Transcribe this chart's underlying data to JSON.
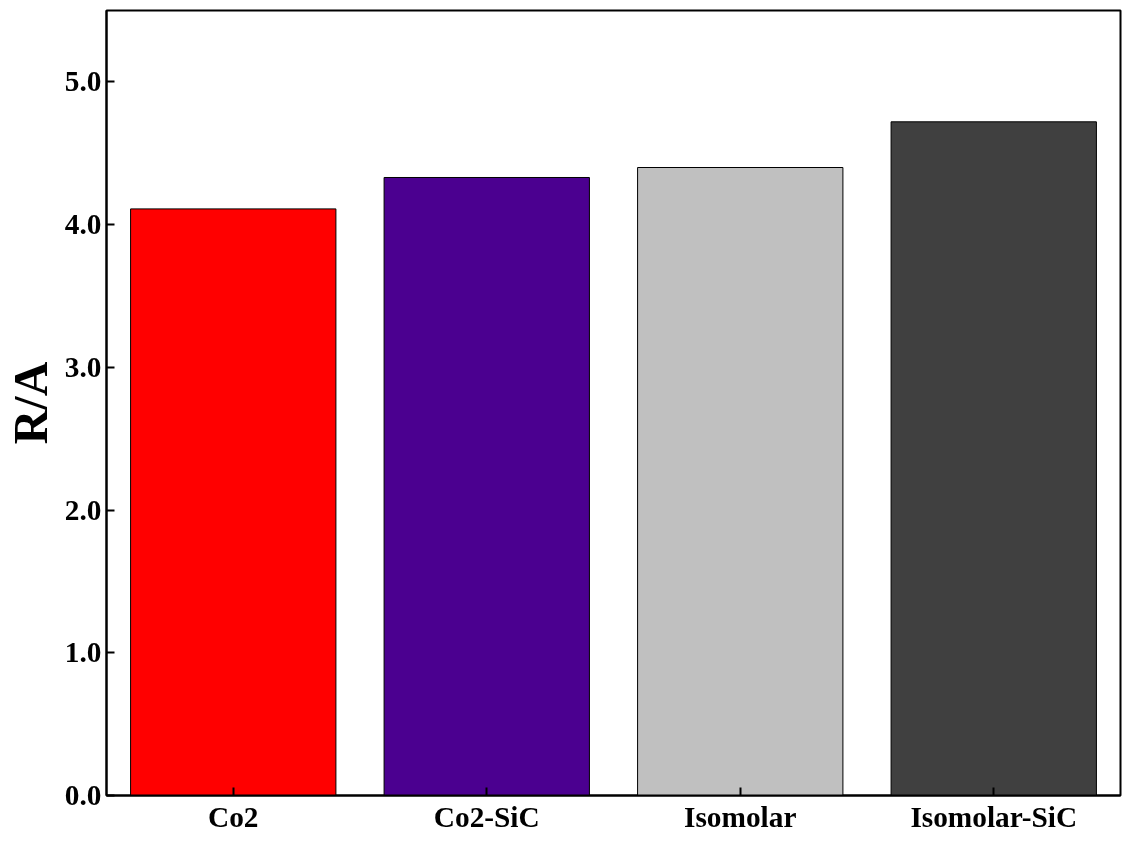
{
  "chart_data": {
    "type": "bar",
    "ylabel": "R/A",
    "categories": [
      "Co2",
      "Co2-SiC",
      "Isomolar",
      "Isomolar-SiC"
    ],
    "values": [
      4.11,
      4.33,
      4.4,
      4.72
    ],
    "colors": [
      "#ff0000",
      "#4b0090",
      "#c0c0c0",
      "#404040"
    ],
    "ylim": [
      0,
      5.5
    ],
    "yticks": [
      {
        "value": 0,
        "label": "0.0"
      },
      {
        "value": 1,
        "label": "1.0"
      },
      {
        "value": 2,
        "label": "2.0"
      },
      {
        "value": 3,
        "label": "3.0"
      },
      {
        "value": 4,
        "label": "4.0"
      },
      {
        "value": 5,
        "label": "5.0"
      }
    ],
    "grid": false
  }
}
